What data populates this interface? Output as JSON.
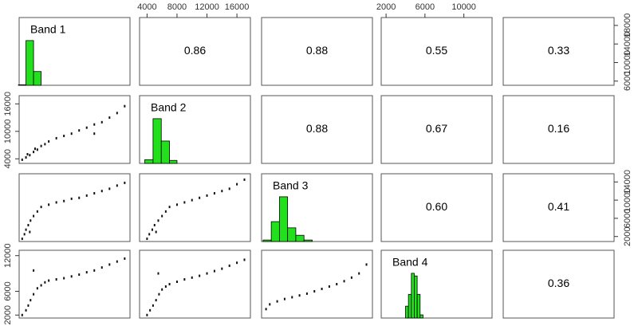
{
  "chart_data": {
    "type": "pairs",
    "variables": [
      {
        "name": "Band 1",
        "lim": [
          5100,
          19700
        ],
        "yticks": [
          6000,
          10000,
          14000,
          18000
        ]
      },
      {
        "name": "Band 2",
        "lim": [
          3000,
          17800
        ],
        "xticks": [
          4000,
          8000,
          12000,
          16000
        ],
        "yticks": [
          4000,
          10000,
          16000
        ]
      },
      {
        "name": "Band 3",
        "lim": [
          900,
          15800
        ],
        "yticks": [
          2000,
          6000,
          10000,
          14000
        ]
      },
      {
        "name": "Band 4",
        "lim": [
          1500,
          12900
        ],
        "xticks": [
          2000,
          6000,
          10000
        ],
        "yticks": [
          2000,
          6000,
          12000
        ]
      }
    ],
    "correlations": [
      [
        0.86,
        0.88,
        0.55,
        0.33
      ],
      [
        0.88,
        0.67,
        0.16
      ],
      [
        0.6,
        0.41
      ],
      [
        0.36
      ]
    ],
    "correlation_labels": [
      [
        "0.86",
        "0.88",
        "0.55",
        "0.33"
      ],
      [
        "0.88",
        "0.67",
        "0.16"
      ],
      [
        "0.60",
        "0.41"
      ],
      [
        "0.36"
      ]
    ],
    "histogram_color": "#22e01c",
    "histograms": [
      {
        "bins": [
          5000,
          6000,
          7000,
          8000
        ],
        "counts": [
          30,
          2600,
          800
        ]
      },
      {
        "bins": [
          3700,
          4800,
          5900,
          7000,
          8000
        ],
        "counts": [
          150,
          1800,
          900,
          120
        ]
      },
      {
        "bins": [
          1100,
          2200,
          3300,
          4400,
          5500,
          6600,
          7700
        ],
        "counts": [
          60,
          800,
          1800,
          550,
          250,
          60
        ]
      },
      {
        "bins": [
          4000,
          4300,
          4600,
          4900,
          5200,
          5500,
          5800
        ],
        "counts": [
          450,
          900,
          1700,
          1600,
          900,
          120
        ]
      }
    ],
    "scatter": [
      {
        "row": 1,
        "col": 0,
        "x": [
          5500,
          6000,
          6500,
          7000,
          7500,
          8000,
          8500,
          9000,
          10000,
          11000,
          12000,
          13000,
          14000,
          15000,
          16000,
          17000,
          18000,
          19000,
          6200,
          7200,
          15000
        ],
        "y": [
          3800,
          4300,
          4800,
          5500,
          6000,
          6800,
          7200,
          7800,
          8500,
          9000,
          9500,
          10200,
          10800,
          11500,
          12000,
          13000,
          14000,
          15500,
          5000,
          6200,
          9500
        ]
      },
      {
        "row": 2,
        "col": 0,
        "x": [
          5500,
          5800,
          6000,
          6300,
          6600,
          7000,
          7500,
          8000,
          9000,
          10000,
          11000,
          12000,
          13000,
          14000,
          15000,
          16000,
          17000,
          18000,
          19000,
          6500
        ],
        "y": [
          1500,
          2500,
          3500,
          4500,
          5500,
          6500,
          7500,
          8500,
          9000,
          9500,
          9800,
          10300,
          10500,
          11000,
          11500,
          12000,
          12500,
          13200,
          13800,
          3000
        ]
      },
      {
        "row": 2,
        "col": 1,
        "x": [
          4000,
          4300,
          4700,
          5000,
          5500,
          6000,
          6500,
          7000,
          8000,
          9000,
          10000,
          11000,
          12000,
          13000,
          14000,
          15000,
          16000,
          17000,
          5200
        ],
        "y": [
          1500,
          2500,
          3500,
          4500,
          5500,
          6500,
          7500,
          8500,
          9000,
          9500,
          10000,
          10500,
          11000,
          11500,
          12000,
          12500,
          13500,
          14500,
          3000
        ]
      },
      {
        "row": 3,
        "col": 0,
        "x": [
          5500,
          6000,
          6300,
          6600,
          7000,
          7500,
          8000,
          8500,
          9000,
          10000,
          11000,
          12000,
          13000,
          14000,
          15000,
          16000,
          17000,
          18000,
          19000,
          7000
        ],
        "y": [
          2000,
          2800,
          3600,
          4500,
          5500,
          6500,
          7000,
          7500,
          7800,
          8000,
          8200,
          8500,
          8800,
          9200,
          9500,
          10000,
          10500,
          11000,
          11500,
          9500
        ]
      },
      {
        "row": 3,
        "col": 1,
        "x": [
          4000,
          4400,
          4800,
          5200,
          5600,
          6000,
          6500,
          7000,
          8000,
          9000,
          10000,
          11000,
          12000,
          13000,
          14000,
          15000,
          16000,
          17000,
          5500
        ],
        "y": [
          2000,
          2800,
          3600,
          4500,
          5500,
          6300,
          6800,
          7200,
          7600,
          8000,
          8300,
          8600,
          9000,
          9400,
          9800,
          10300,
          10800,
          11300,
          9000
        ]
      },
      {
        "row": 3,
        "col": 2,
        "x": [
          1500,
          2000,
          3000,
          4000,
          5000,
          6000,
          7000,
          8000,
          9000,
          10000,
          11000,
          12000,
          13000,
          14000,
          15000
        ],
        "y": [
          3000,
          3800,
          4300,
          4700,
          5000,
          5300,
          5600,
          6000,
          6400,
          6800,
          7200,
          7700,
          8300,
          9000,
          10500
        ]
      }
    ]
  }
}
